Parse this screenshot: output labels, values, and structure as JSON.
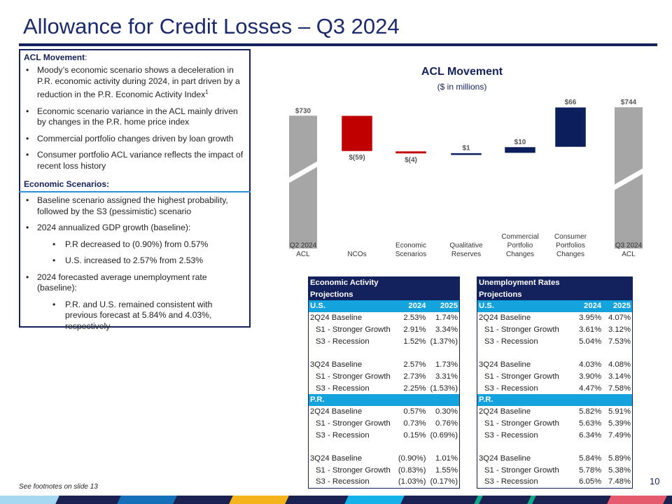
{
  "title": "Allowance for Credit Losses – Q3 2024",
  "left_panel": {
    "acl_heading": "ACL Movement",
    "acl_heading_suffix": ":",
    "acl_bullets": [
      "Moody’s economic scenario shows a deceleration in P.R. economic activity during 2024, in part driven by a reduction in the P.R. Economic Activity Index",
      "Economic scenario variance in the ACL mainly driven by changes in the P.R. home price index",
      "Commercial portfolio changes driven by loan growth",
      "Consumer portfolio ACL variance reflects the impact of recent loss history"
    ],
    "footnote_mark": "1",
    "scen_heading": "Economic Scenarios:",
    "scen_bullets": [
      "Baseline scenario assigned the highest probability, followed by the S3 (pessimistic) scenario",
      "2024 annualized GDP growth (baseline):",
      "P.R decreased to (0.90%) from 0.57%",
      "U.S. increased to 2.57% from 2.53%",
      "2024 forecasted average unemployment rate (baseline):",
      "P.R. and U.S. remained consistent with previous forecast at 5.84% and 4.03%, respectively"
    ]
  },
  "chart_data": {
    "type": "waterfall",
    "title": "ACL Movement",
    "subtitle": "($ in millions)",
    "categories": [
      "Q2 2024 ACL",
      "NCOs",
      "Economic Scenarios",
      "Qualitative Reserves",
      "Commercial Portfolio Changes",
      "Consumer Portfolios Changes",
      "Q3 2024 ACL"
    ],
    "values": [
      730,
      -59,
      -4,
      1,
      10,
      66,
      744
    ],
    "kinds": [
      "total",
      "delta",
      "delta",
      "delta",
      "delta",
      "delta",
      "total"
    ],
    "labels": [
      "$730",
      "$(59)",
      "$(4)",
      "$1",
      "$10",
      "$66",
      "$744"
    ],
    "colors": {
      "total": "#a6a6a6",
      "negative": "#c00000",
      "positive": "#0c1f5c"
    },
    "axis_break": true
  },
  "tables": [
    {
      "title1": "Economic Activity",
      "title2": "Projections",
      "sections": [
        {
          "name": "U.S.",
          "cols": [
            "2024",
            "2025"
          ],
          "groups": [
            [
              [
                "2Q24 Baseline",
                "2.53%",
                "1.74%"
              ],
              [
                "S1 - Stronger Growth",
                "2.91%",
                "3.34%"
              ],
              [
                "S3 - Recession",
                "1.52%",
                "(1.37%)"
              ]
            ],
            [
              [
                "3Q24 Baseline",
                "2.57%",
                "1.73%"
              ],
              [
                "S1 - Stronger Growth",
                "2.73%",
                "3.31%"
              ],
              [
                "S3 - Recession",
                "2.25%",
                "(1.53%)"
              ]
            ]
          ]
        },
        {
          "name": "P.R.",
          "cols": [
            "",
            ""
          ],
          "groups": [
            [
              [
                "2Q24 Baseline",
                "0.57%",
                "0.30%"
              ],
              [
                "S1 - Stronger Growth",
                "0.73%",
                "0.76%"
              ],
              [
                "S3 - Recession",
                "0.15%",
                "(0.69%)"
              ]
            ],
            [
              [
                "3Q24 Baseline",
                "(0.90%)",
                "1.01%"
              ],
              [
                "S1 - Stronger Growth",
                "(0.83%)",
                "1.55%"
              ],
              [
                "S3 - Recession",
                "(1.03%)",
                "(0.17%)"
              ]
            ]
          ]
        }
      ]
    },
    {
      "title1": "Unemployment Rates",
      "title2": "Projections",
      "sections": [
        {
          "name": "U.S.",
          "cols": [
            "2024",
            "2025"
          ],
          "groups": [
            [
              [
                "2Q24 Baseline",
                "3.95%",
                "4.07%"
              ],
              [
                "S1 - Stronger Growth",
                "3.61%",
                "3.12%"
              ],
              [
                "S3 - Recession",
                "5.04%",
                "7.53%"
              ]
            ],
            [
              [
                "3Q24 Baseline",
                "4.03%",
                "4.08%"
              ],
              [
                "S1 - Stronger Growth",
                "3.90%",
                "3.14%"
              ],
              [
                "S3 - Recession",
                "4.47%",
                "7.58%"
              ]
            ]
          ]
        },
        {
          "name": "P.R.",
          "cols": [
            "",
            ""
          ],
          "groups": [
            [
              [
                "2Q24 Baseline",
                "5.82%",
                "5.91%"
              ],
              [
                "S1 - Stronger Growth",
                "5.63%",
                "5.39%"
              ],
              [
                "S3 - Recession",
                "6.34%",
                "7.49%"
              ]
            ],
            [
              [
                "3Q24 Baseline",
                "5.84%",
                "5.89%"
              ],
              [
                "S1 - Stronger Growth",
                "5.78%",
                "5.38%"
              ],
              [
                "S3 - Recession",
                "6.05%",
                "7.48%"
              ]
            ]
          ]
        }
      ]
    }
  ],
  "footer": {
    "note": "See footnotes on slide 13",
    "page": "10"
  },
  "stripe_colors": [
    "#a6d8f2",
    "#1470b8",
    "#f5b41c",
    "#14b2e8",
    "#14a88a",
    "#14a88a",
    "#e65a6e"
  ]
}
